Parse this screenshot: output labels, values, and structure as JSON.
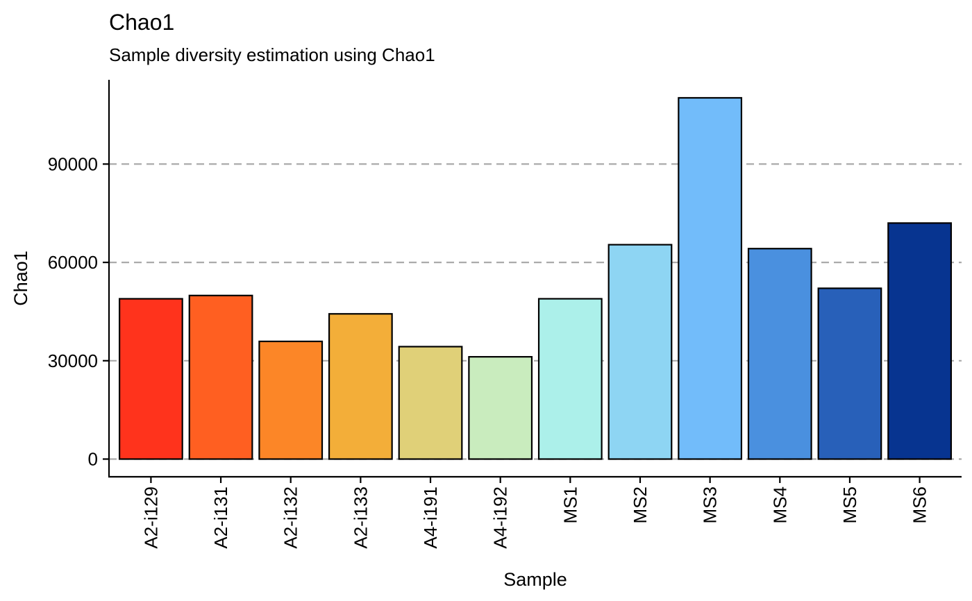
{
  "chart_data": {
    "type": "bar",
    "title": "Chao1",
    "subtitle": "Sample diversity estimation using Chao1",
    "xlabel": "Sample",
    "ylabel": "Chao1",
    "categories": [
      "A2-i129",
      "A2-i131",
      "A2-i132",
      "A2-i133",
      "A4-i191",
      "A4-i192",
      "MS1",
      "MS2",
      "MS3",
      "MS4",
      "MS5",
      "MS6"
    ],
    "values": [
      48900,
      49900,
      35900,
      44300,
      34300,
      31200,
      48900,
      65400,
      110200,
      64200,
      52100,
      72000
    ],
    "colors": [
      "#FF331C",
      "#FF5F21",
      "#FC8627",
      "#F3AE39",
      "#E0D078",
      "#C9ECBE",
      "#ACF0EA",
      "#8ED5F3",
      "#72BCFA",
      "#4A90DF",
      "#2860B9",
      "#073490"
    ],
    "yticks": [
      0,
      30000,
      60000,
      90000
    ],
    "ylim": [
      -5400,
      115700
    ],
    "grid": "horizontal dashed gridlines at y ticks",
    "legend": "none"
  }
}
